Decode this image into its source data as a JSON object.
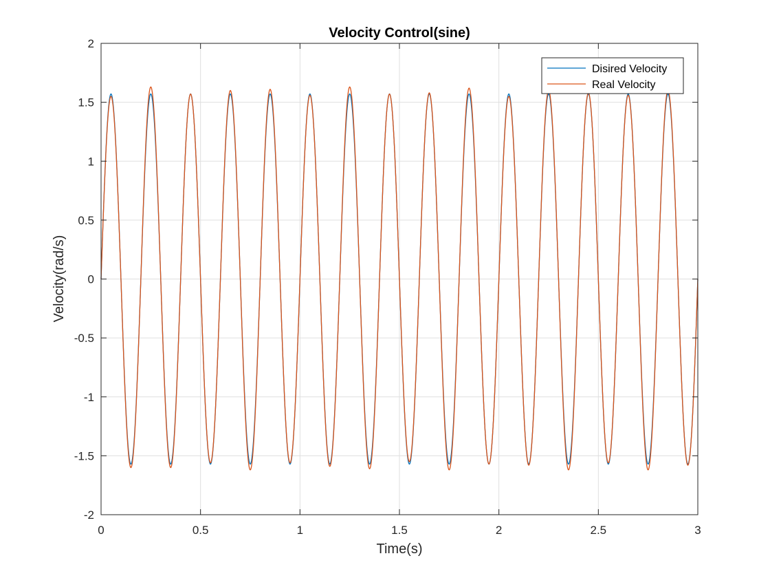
{
  "chart_data": {
    "type": "line",
    "title": "Velocity Control(sine)",
    "xlabel": "Time(s)",
    "ylabel": "Velocity(rad/s)",
    "xlim": [
      0,
      3
    ],
    "ylim": [
      -2,
      2
    ],
    "xticks": [
      0,
      0.5,
      1,
      1.5,
      2,
      2.5,
      3
    ],
    "xtick_labels": [
      "0",
      "0.5",
      "1",
      "1.5",
      "2",
      "2.5",
      "3"
    ],
    "yticks": [
      -2,
      -1.5,
      -1,
      -0.5,
      0,
      0.5,
      1,
      1.5,
      2
    ],
    "ytick_labels": [
      "-2",
      "-1.5",
      "-1",
      "-0.5",
      "0",
      "0.5",
      "1",
      "1.5",
      "2"
    ],
    "grid": true,
    "legend_position": "top-right",
    "series": [
      {
        "name": "Disired Velocity",
        "color": "#0072BD",
        "function": "sine",
        "amplitude": 1.5708,
        "frequency_hz": 5,
        "phase": 0
      },
      {
        "name": "Real Velocity",
        "color": "#D95319",
        "function": "sine",
        "amplitude": 1.5708,
        "frequency_hz": 5,
        "phase": 0,
        "peaks": [
          {
            "x": 0.05,
            "y": 1.55
          },
          {
            "x": 0.25,
            "y": 1.63
          },
          {
            "x": 0.45,
            "y": 1.57
          },
          {
            "x": 0.65,
            "y": 1.6
          },
          {
            "x": 0.85,
            "y": 1.61
          },
          {
            "x": 1.05,
            "y": 1.56
          },
          {
            "x": 1.25,
            "y": 1.63
          },
          {
            "x": 1.45,
            "y": 1.57
          },
          {
            "x": 1.65,
            "y": 1.58
          },
          {
            "x": 1.85,
            "y": 1.62
          },
          {
            "x": 2.05,
            "y": 1.55
          },
          {
            "x": 2.25,
            "y": 1.6
          },
          {
            "x": 2.45,
            "y": 1.58
          },
          {
            "x": 2.65,
            "y": 1.56
          },
          {
            "x": 2.85,
            "y": 1.6
          }
        ],
        "troughs": [
          {
            "x": 0.15,
            "y": -1.6
          },
          {
            "x": 0.35,
            "y": -1.6
          },
          {
            "x": 0.55,
            "y": -1.56
          },
          {
            "x": 0.75,
            "y": -1.62
          },
          {
            "x": 0.95,
            "y": -1.56
          },
          {
            "x": 1.15,
            "y": -1.59
          },
          {
            "x": 1.35,
            "y": -1.61
          },
          {
            "x": 1.55,
            "y": -1.55
          },
          {
            "x": 1.75,
            "y": -1.62
          },
          {
            "x": 1.95,
            "y": -1.57
          },
          {
            "x": 2.15,
            "y": -1.58
          },
          {
            "x": 2.35,
            "y": -1.62
          },
          {
            "x": 2.55,
            "y": -1.56
          },
          {
            "x": 2.75,
            "y": -1.62
          },
          {
            "x": 2.95,
            "y": -1.58
          }
        ]
      }
    ]
  }
}
